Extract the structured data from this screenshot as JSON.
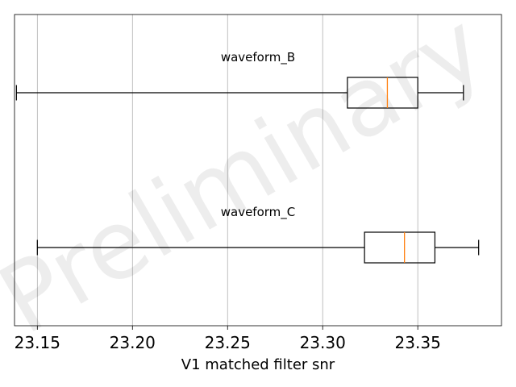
{
  "chart_data": {
    "type": "boxplot",
    "orientation": "horizontal",
    "xlabel": "V1 matched filter snr",
    "xlim": [
      23.138,
      23.394
    ],
    "xticks": [
      23.15,
      23.2,
      23.25,
      23.3,
      23.35
    ],
    "xtick_labels": [
      "23.15",
      "23.20",
      "23.25",
      "23.30",
      "23.35"
    ],
    "grid": "vertical",
    "watermark": "Preliminary",
    "series": [
      {
        "name": "waveform_B",
        "whisker_low": 23.139,
        "q1": 23.313,
        "median": 23.334,
        "q3": 23.35,
        "whisker_high": 23.374
      },
      {
        "name": "waveform_C",
        "whisker_low": 23.15,
        "q1": 23.322,
        "median": 23.343,
        "q3": 23.359,
        "whisker_high": 23.382
      }
    ],
    "colors": {
      "box": "#000000",
      "median": "#ff7f0e",
      "grid": "#b0b0b0"
    }
  }
}
